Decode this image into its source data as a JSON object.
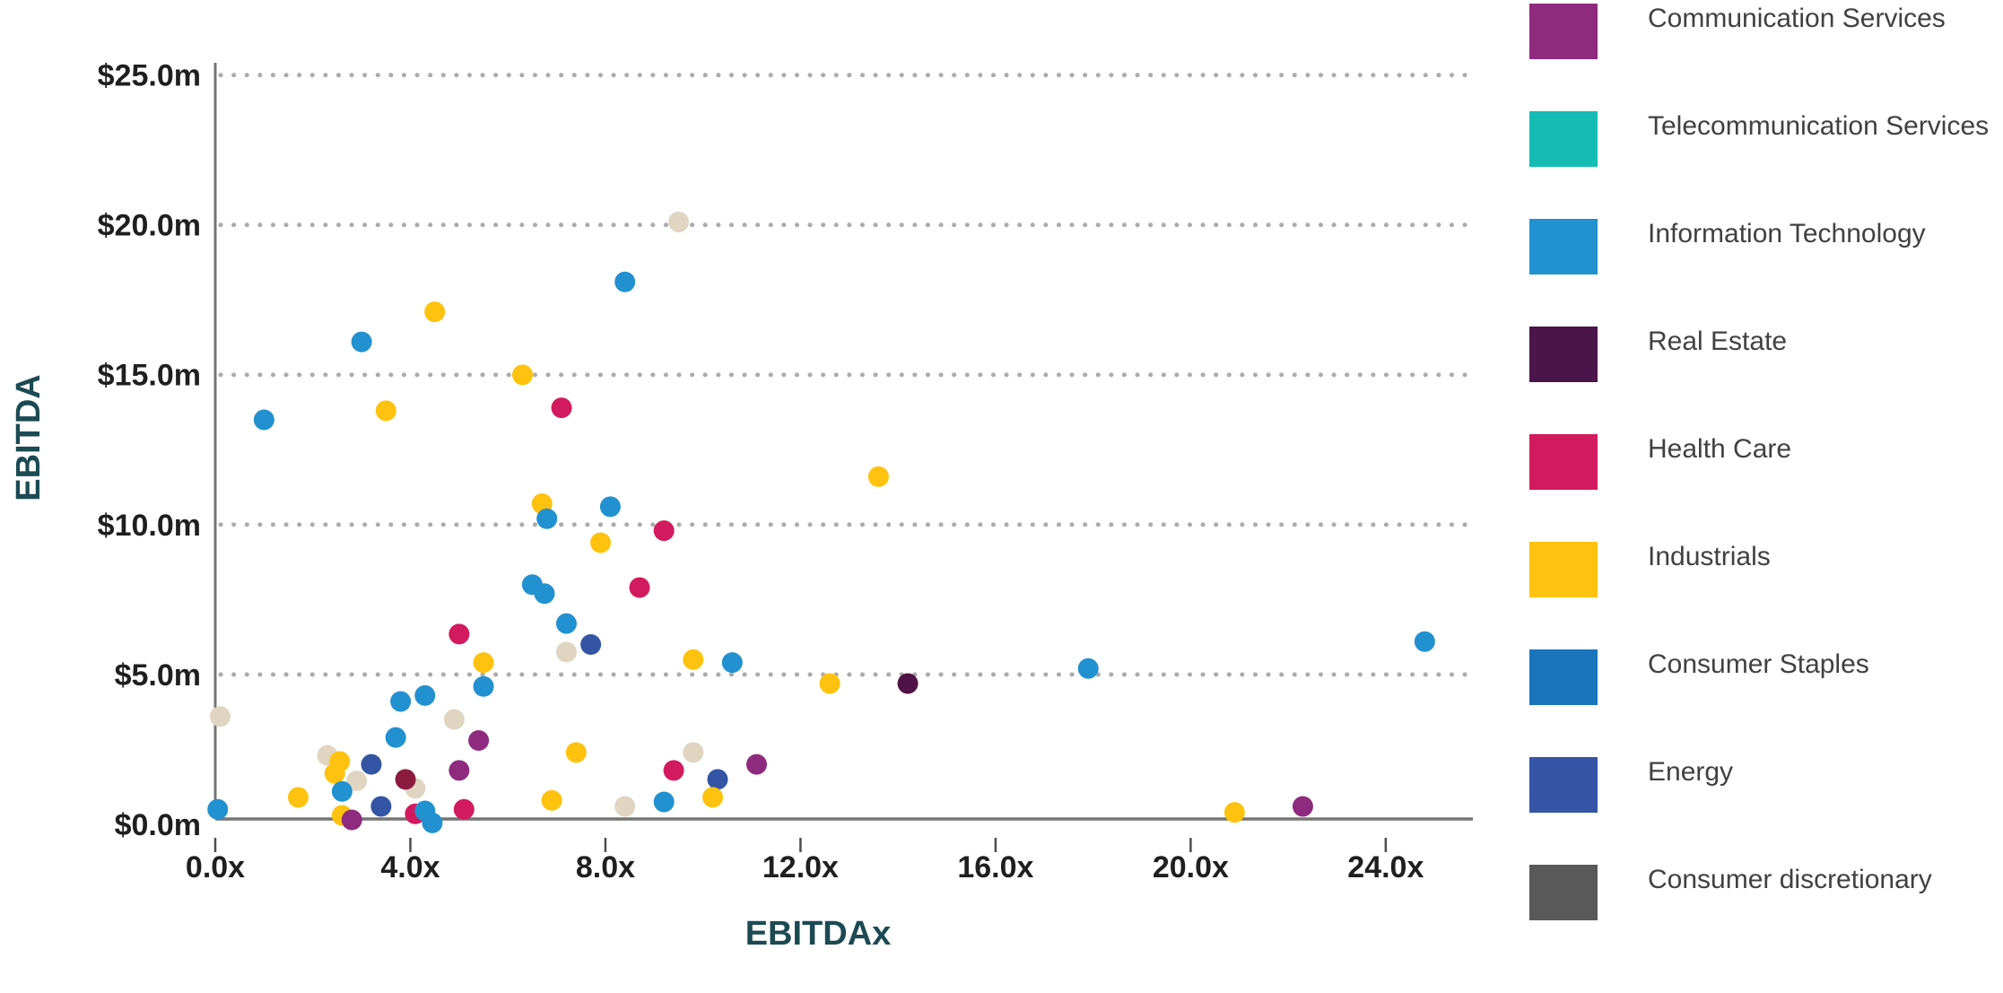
{
  "chart_data": {
    "type": "scatter",
    "title": "",
    "xlabel": "EBITDAx",
    "ylabel": "EBITDA",
    "xlim": [
      0,
      25.75
    ],
    "ylim": [
      0,
      25.8
    ],
    "grid": "horizontal dotted lines at each $5.0m step",
    "legend_position": "right",
    "colors": {
      "background": "#ffffff",
      "axis_line": "#757575",
      "gridline": "#ababab",
      "tick_label": "#1f1f1f",
      "axis_title": "#1b4a52",
      "legend_label": "#414042"
    },
    "x_ticks": [
      {
        "value": 0,
        "label": "0.0x"
      },
      {
        "value": 4,
        "label": "4.0x"
      },
      {
        "value": 8,
        "label": "8.0x"
      },
      {
        "value": 12,
        "label": "12.0x"
      },
      {
        "value": 16,
        "label": "16.0x"
      },
      {
        "value": 20,
        "label": "20.0x"
      },
      {
        "value": 24,
        "label": "24.0x"
      }
    ],
    "y_ticks": [
      {
        "value": 0,
        "label": "$0.0m"
      },
      {
        "value": 5,
        "label": "$5.0m"
      },
      {
        "value": 10,
        "label": "$10.0m"
      },
      {
        "value": 15,
        "label": "$15.0m"
      },
      {
        "value": 20,
        "label": "$20.0m"
      },
      {
        "value": 25,
        "label": "$25.0m"
      }
    ],
    "series": [
      {
        "name": "Communication Services",
        "legend_color": "#8e2b7e",
        "dot_color": "#8e2b7e",
        "points": [
          {
            "x": 2.8,
            "y": 0.15
          },
          {
            "x": 5.0,
            "y": 1.8
          },
          {
            "x": 5.4,
            "y": 2.8
          },
          {
            "x": 11.1,
            "y": 2.0
          },
          {
            "x": 22.3,
            "y": 0.6
          }
        ]
      },
      {
        "name": "Telecommunication Services",
        "legend_color": "#14bcb4",
        "dot_color": "#14bcb4",
        "points": []
      },
      {
        "name": "Information Technology",
        "legend_color": "#2191d0",
        "dot_color": "#2191d0",
        "points": [
          {
            "x": 0.05,
            "y": 0.5
          },
          {
            "x": 1.0,
            "y": 13.5
          },
          {
            "x": 2.6,
            "y": 1.1
          },
          {
            "x": 3.0,
            "y": 16.1
          },
          {
            "x": 3.7,
            "y": 2.9
          },
          {
            "x": 3.8,
            "y": 4.1
          },
          {
            "x": 4.3,
            "y": 4.3
          },
          {
            "x": 4.3,
            "y": 0.45
          },
          {
            "x": 4.45,
            "y": 0.05
          },
          {
            "x": 5.5,
            "y": 4.6
          },
          {
            "x": 6.5,
            "y": 8.0
          },
          {
            "x": 6.75,
            "y": 7.7
          },
          {
            "x": 6.8,
            "y": 10.2
          },
          {
            "x": 7.2,
            "y": 6.7
          },
          {
            "x": 8.1,
            "y": 10.6
          },
          {
            "x": 8.4,
            "y": 18.1
          },
          {
            "x": 9.2,
            "y": 0.75
          },
          {
            "x": 10.6,
            "y": 5.4
          },
          {
            "x": 17.9,
            "y": 5.2
          },
          {
            "x": 24.8,
            "y": 6.1
          }
        ]
      },
      {
        "name": "Real Estate",
        "legend_color": "#4a1548",
        "dot_color": "#4f1345",
        "points": [
          {
            "x": 14.2,
            "y": 4.7
          },
          {
            "x": 3.9,
            "y": 1.5,
            "color": "#8c1b40"
          }
        ]
      },
      {
        "name": "Health Care",
        "legend_color": "#d21a5e",
        "dot_color": "#d21a5e",
        "points": [
          {
            "x": 4.1,
            "y": 0.35
          },
          {
            "x": 5.0,
            "y": 6.35
          },
          {
            "x": 5.1,
            "y": 0.5
          },
          {
            "x": 7.1,
            "y": 13.9
          },
          {
            "x": 8.7,
            "y": 7.9
          },
          {
            "x": 9.2,
            "y": 9.8
          },
          {
            "x": 9.4,
            "y": 1.8
          }
        ]
      },
      {
        "name": "Industrials",
        "legend_color": "#ffc20e",
        "dot_color": "#ffc20e",
        "points": [
          {
            "x": 1.7,
            "y": 0.9
          },
          {
            "x": 2.45,
            "y": 1.7
          },
          {
            "x": 2.55,
            "y": 2.1
          },
          {
            "x": 2.6,
            "y": 0.3
          },
          {
            "x": 3.5,
            "y": 13.8
          },
          {
            "x": 4.5,
            "y": 17.1
          },
          {
            "x": 5.5,
            "y": 5.4
          },
          {
            "x": 6.3,
            "y": 15.0
          },
          {
            "x": 6.7,
            "y": 10.7
          },
          {
            "x": 6.9,
            "y": 0.8
          },
          {
            "x": 7.4,
            "y": 2.4
          },
          {
            "x": 7.9,
            "y": 9.4
          },
          {
            "x": 9.8,
            "y": 5.5
          },
          {
            "x": 10.2,
            "y": 0.9
          },
          {
            "x": 12.6,
            "y": 4.7
          },
          {
            "x": 13.6,
            "y": 11.6
          },
          {
            "x": 20.9,
            "y": 0.4
          }
        ]
      },
      {
        "name": "Consumer Staples",
        "legend_color": "#1b75bb",
        "dot_color": "#1b75bb",
        "points": []
      },
      {
        "name": "Energy",
        "legend_color": "#3355a4",
        "dot_color": "#3355a4",
        "points": [
          {
            "x": 3.2,
            "y": 2.0
          },
          {
            "x": 3.4,
            "y": 0.6
          },
          {
            "x": 7.7,
            "y": 6.0
          },
          {
            "x": 10.3,
            "y": 1.5
          }
        ]
      },
      {
        "name": "Consumer discretionary",
        "legend_color": "#595959",
        "dot_color": "#e0d5c1",
        "points": [
          {
            "x": 0.1,
            "y": 3.6
          },
          {
            "x": 2.3,
            "y": 2.3
          },
          {
            "x": 2.9,
            "y": 1.45
          },
          {
            "x": 4.1,
            "y": 1.2
          },
          {
            "x": 4.9,
            "y": 3.5
          },
          {
            "x": 7.2,
            "y": 5.75
          },
          {
            "x": 8.4,
            "y": 0.6
          },
          {
            "x": 9.5,
            "y": 20.1
          },
          {
            "x": 9.8,
            "y": 2.4
          }
        ]
      }
    ]
  }
}
